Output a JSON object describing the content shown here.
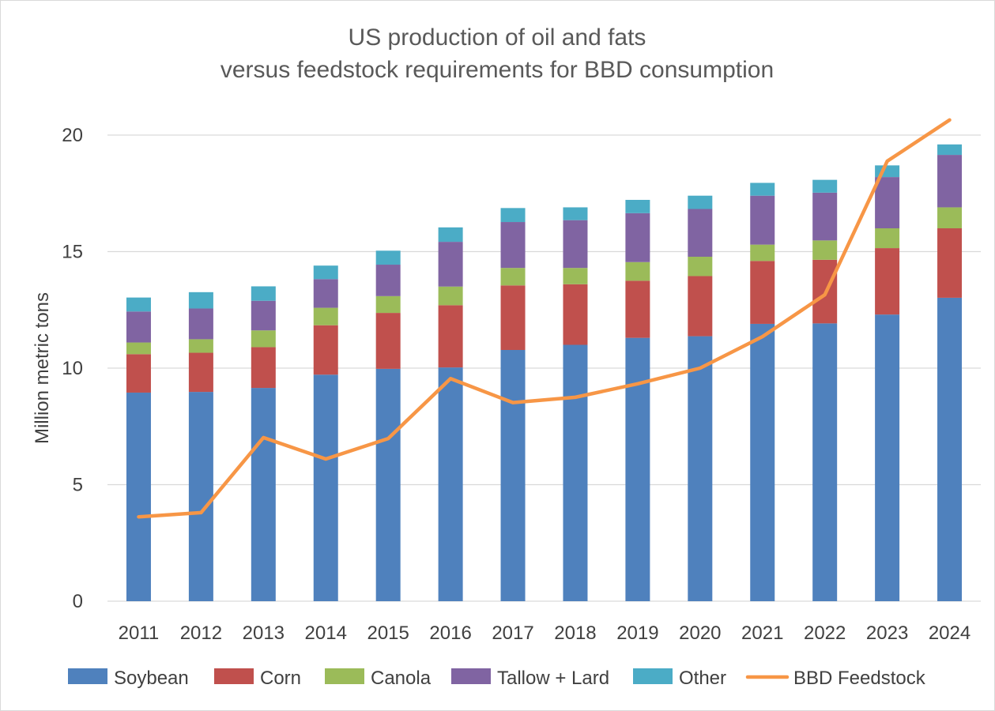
{
  "chart_data": {
    "type": "bar",
    "stacked": true,
    "title_line1": "US production of oil and fats",
    "title_line2": "versus  feedstock requirements for BBD consumption",
    "xlabel": "",
    "ylabel": "Million metric tons",
    "ylim": [
      0,
      20
    ],
    "yticks": [
      "0",
      "5",
      "10",
      "15",
      "20"
    ],
    "grid": true,
    "legend_position": "bottom",
    "categories": [
      "2011",
      "2012",
      "2013",
      "2014",
      "2015",
      "2016",
      "2017",
      "2018",
      "2019",
      "2020",
      "2021",
      "2022",
      "2023",
      "2024"
    ],
    "series": [
      {
        "name": "Soybean",
        "color": "#4f81bd",
        "values": [
          8.95,
          8.98,
          9.15,
          9.72,
          9.97,
          10.03,
          10.78,
          11.0,
          11.3,
          11.37,
          11.9,
          11.92,
          12.3,
          13.02
        ]
      },
      {
        "name": "Corn",
        "color": "#c0504d",
        "values": [
          1.65,
          1.68,
          1.75,
          2.12,
          2.4,
          2.67,
          2.77,
          2.6,
          2.45,
          2.58,
          2.7,
          2.73,
          2.85,
          2.98
        ]
      },
      {
        "name": "Canola",
        "color": "#9bbb59",
        "values": [
          0.5,
          0.58,
          0.72,
          0.75,
          0.72,
          0.8,
          0.75,
          0.7,
          0.8,
          0.83,
          0.7,
          0.83,
          0.85,
          0.9
        ]
      },
      {
        "name": "Tallow + Lard",
        "color": "#8064a2",
        "values": [
          1.33,
          1.32,
          1.27,
          1.23,
          1.35,
          1.92,
          1.97,
          2.05,
          2.1,
          2.05,
          2.1,
          2.05,
          2.2,
          2.25
        ]
      },
      {
        "name": "Other",
        "color": "#4bacc6",
        "values": [
          0.6,
          0.7,
          0.62,
          0.58,
          0.6,
          0.62,
          0.6,
          0.55,
          0.57,
          0.57,
          0.55,
          0.55,
          0.5,
          0.45
        ]
      }
    ],
    "line_series": {
      "name": "BBD Feedstock",
      "color": "#f79646",
      "values": [
        3.62,
        3.8,
        7.02,
        6.1,
        6.98,
        9.55,
        8.52,
        8.75,
        9.33,
        10.0,
        11.35,
        13.15,
        18.88,
        20.65
      ]
    }
  }
}
